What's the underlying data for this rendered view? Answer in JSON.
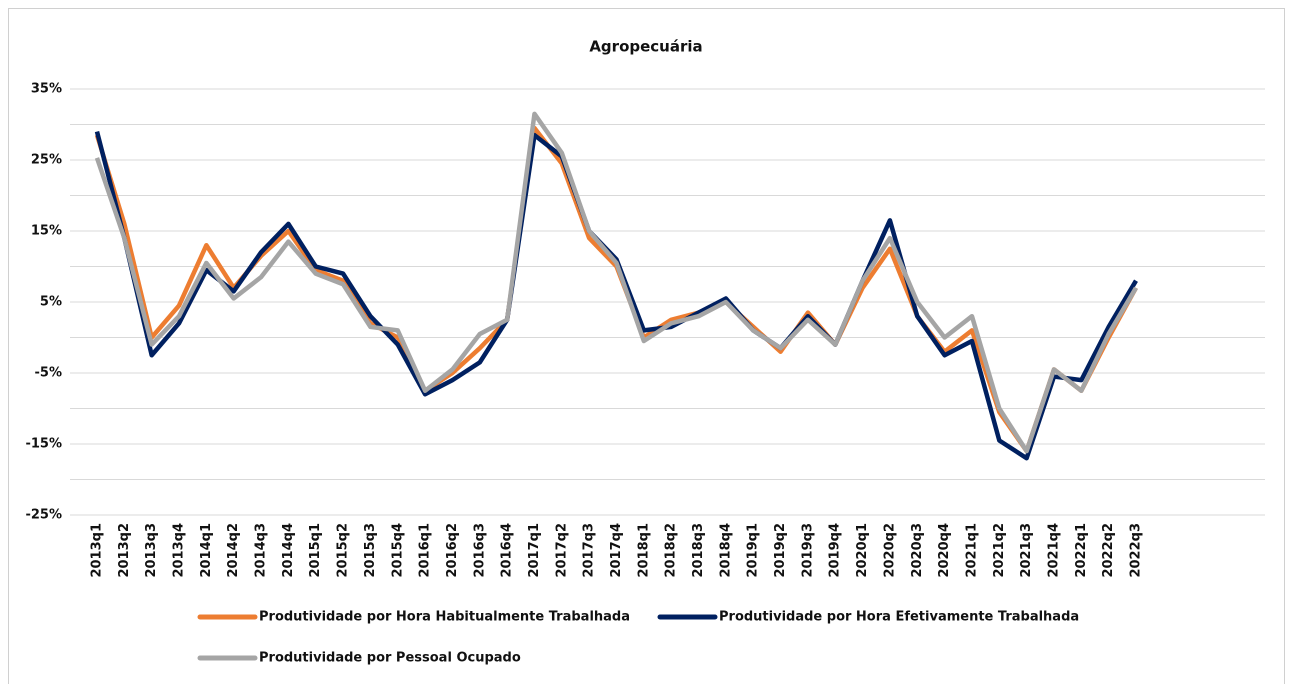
{
  "chart_data": {
    "type": "line",
    "title": "Agropecuária",
    "categories": [
      "2013q1",
      "2013q2",
      "2013q3",
      "2013q4",
      "2014q1",
      "2014q2",
      "2014q3",
      "2014q4",
      "2015q1",
      "2015q2",
      "2015q3",
      "2015q4",
      "2016q1",
      "2016q2",
      "2016q3",
      "2016q4",
      "2017q1",
      "2017q2",
      "2017q3",
      "2017q4",
      "2018q1",
      "2018q2",
      "2018q3",
      "2018q4",
      "2019q1",
      "2019q2",
      "2019q3",
      "2019q4",
      "2020q1",
      "2020q2",
      "2020q3",
      "2020q4",
      "2021q1",
      "2021q2",
      "2021q3",
      "2021q4",
      "2022q1",
      "2022q2",
      "2022q3"
    ],
    "series": [
      {
        "name": "Produtividade por Hora Habitualmente Trabalhada",
        "color": "#ed7d31",
        "values": [
          28.5,
          16,
          0,
          4.5,
          13,
          7,
          11.5,
          15,
          9.5,
          8,
          2,
          0,
          -7.5,
          -5,
          -1.5,
          2.5,
          29.5,
          24.5,
          14,
          10,
          0,
          2.5,
          3.5,
          5,
          1.5,
          -2,
          3.5,
          -1,
          7,
          12.5,
          3,
          -2,
          1,
          -10.5,
          -16,
          -4.5,
          -7.5,
          0,
          7
        ]
      },
      {
        "name": "Produtividade por Hora Efetivamente Trabalhada",
        "color": "#002060",
        "values": [
          29,
          14,
          -2.5,
          2,
          9.5,
          6.5,
          12,
          16,
          10,
          9,
          3,
          -1,
          -8,
          -6,
          -3.5,
          2.5,
          28.5,
          25.5,
          15,
          11,
          1,
          1.5,
          3.5,
          5.5,
          1,
          -1.5,
          3,
          -1,
          8,
          16.5,
          3,
          -2.5,
          -0.5,
          -14.5,
          -17,
          -5.5,
          -6,
          1.5,
          8
        ]
      },
      {
        "name": "Produtividade por Pessoal Ocupado",
        "color": "#a5a5a5",
        "values": [
          25.3,
          14,
          -1,
          3,
          10.5,
          5.5,
          8.5,
          13.5,
          9,
          7.5,
          1.5,
          1,
          -7.5,
          -4.5,
          0.5,
          2.5,
          31.5,
          26,
          15,
          10.5,
          -0.5,
          2,
          3,
          5,
          1,
          -1.5,
          2.5,
          -1,
          8,
          14,
          5,
          0,
          3,
          -10,
          -16,
          -4.5,
          -7.5,
          0.5,
          7
        ]
      }
    ],
    "ylim": [
      -25,
      35
    ],
    "yticks": [
      {
        "value": -25,
        "label": "-25%"
      },
      {
        "value": -15,
        "label": "-15%"
      },
      {
        "value": -5,
        "label": "-5%"
      },
      {
        "value": 5,
        "label": "5%"
      },
      {
        "value": 15,
        "label": "15%"
      },
      {
        "value": 25,
        "label": "25%"
      },
      {
        "value": 35,
        "label": "35%"
      }
    ],
    "grid": true
  }
}
